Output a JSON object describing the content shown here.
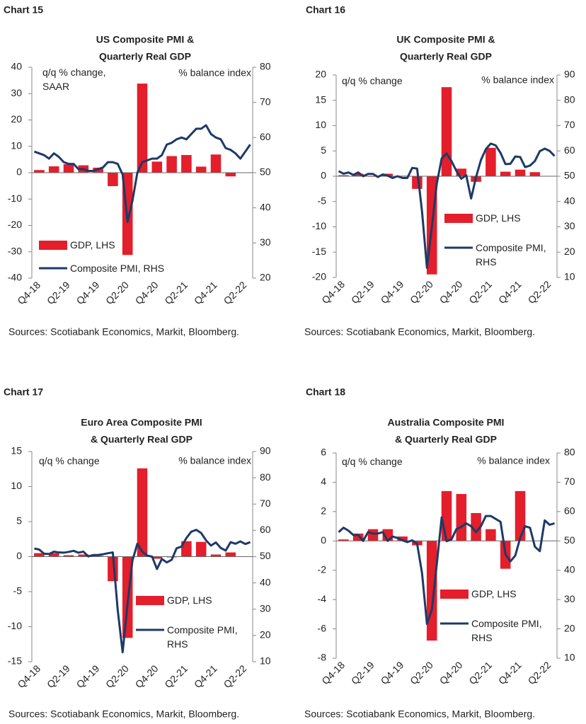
{
  "chart_data": [
    {
      "chart_label": "Chart 15",
      "type": "combo",
      "title": [
        "US Composite PMI &",
        "Quarterly Real GDP"
      ],
      "ylabel": "q/q % change, SAAR",
      "y2label": "% balance index",
      "categories": [
        null,
        "Q4-18",
        null,
        null,
        null,
        null,
        null,
        "Q2-19",
        null,
        null,
        null,
        null,
        null,
        "Q4-19",
        null,
        null,
        null,
        null,
        null,
        "Q2-20",
        null,
        null,
        null,
        null,
        null,
        "Q4-20",
        null,
        null,
        null,
        null,
        null,
        "Q2-21",
        null,
        null,
        null,
        null,
        null,
        "Q4-21",
        null,
        null,
        null,
        null,
        null,
        "Q2-22",
        null
      ],
      "series": [
        {
          "name": "GDP, LHS",
          "type": "bar",
          "color": "#e41e2b",
          "values": [
            null,
            1.0,
            null,
            null,
            2.4,
            null,
            null,
            3.2,
            null,
            null,
            2.8,
            null,
            null,
            1.9,
            null,
            null,
            -5.1,
            null,
            null,
            -31.2,
            null,
            null,
            33.8,
            null,
            null,
            4.2,
            null,
            null,
            6.3,
            null,
            null,
            6.7,
            null,
            null,
            2.3,
            null,
            null,
            6.9,
            null,
            null,
            -1.4,
            null,
            null,
            null,
            null
          ]
        },
        {
          "name": "Composite PMI, RHS",
          "type": "line",
          "axis": "y2",
          "color": "#1d3a66",
          "values": [
            56,
            55.5,
            55,
            54,
            55.5,
            54.5,
            53,
            52.5,
            52.5,
            51,
            51,
            50.5,
            50.5,
            51,
            51.5,
            53,
            53,
            52.5,
            49.5,
            36,
            42,
            50,
            53,
            53.5,
            54,
            54,
            55,
            58,
            58.5,
            59.5,
            60,
            59.5,
            61,
            62.5,
            62.5,
            63.5,
            61,
            60,
            59.5,
            57,
            56.5,
            55.5,
            54,
            56,
            58
          ]
        }
      ],
      "ylim": [
        -40,
        40
      ],
      "yticks": [
        -40,
        -30,
        -20,
        -10,
        0,
        10,
        20,
        30,
        40
      ],
      "y2lim": [
        20,
        80
      ],
      "y2ticks": [
        20,
        30,
        40,
        50,
        60,
        70,
        80
      ],
      "source": "Sources: Scotiabank Economics, Markit, Bloomberg."
    },
    {
      "chart_label": "Chart 16",
      "type": "combo",
      "title": [
        "UK Composite PMI &",
        "Quarterly Real GDP"
      ],
      "ylabel": "q/q % change",
      "y2label": "% balance index",
      "categories": [
        null,
        "Q4-18",
        null,
        null,
        null,
        null,
        null,
        "Q2-19",
        null,
        null,
        null,
        null,
        null,
        "Q4-19",
        null,
        null,
        null,
        null,
        null,
        "Q2-20",
        null,
        null,
        null,
        null,
        null,
        "Q4-20",
        null,
        null,
        null,
        null,
        null,
        "Q2-21",
        null,
        null,
        null,
        null,
        null,
        "Q4-21",
        null,
        null,
        null,
        null,
        null,
        "Q2-22",
        null
      ],
      "series": [
        {
          "name": "GDP, LHS",
          "type": "bar",
          "color": "#e41e2b",
          "values": [
            null,
            0.2,
            null,
            null,
            0.5,
            null,
            null,
            -0.1,
            null,
            null,
            0.5,
            null,
            null,
            0.1,
            null,
            null,
            -2.5,
            null,
            null,
            -19.4,
            null,
            null,
            17.6,
            null,
            null,
            1.5,
            null,
            null,
            -1.1,
            null,
            null,
            5.6,
            null,
            null,
            0.9,
            null,
            null,
            1.3,
            null,
            null,
            0.8,
            null,
            null,
            null,
            null
          ]
        },
        {
          "name": "Composite PMI, RHS",
          "type": "line",
          "axis": "y2",
          "color": "#1d3a66",
          "values": [
            52,
            51,
            51.5,
            50.5,
            51.5,
            50,
            50.9,
            50.9,
            49.7,
            50.7,
            50.2,
            49.3,
            50,
            49.3,
            49.3,
            53.3,
            53,
            36,
            13.8,
            30,
            47,
            57,
            59,
            56,
            52.1,
            49,
            50.4,
            41.2,
            49.6,
            56.4,
            60.7,
            62.9,
            62.2,
            59.2,
            54.8,
            54.9,
            57.8,
            57.6,
            53.6,
            54.2,
            56,
            59.9,
            60.9,
            60,
            58
          ]
        }
      ],
      "ylim": [
        -20,
        20
      ],
      "yticks": [
        -20,
        -15,
        -10,
        -5,
        0,
        5,
        10,
        15,
        20
      ],
      "y2lim": [
        10,
        90
      ],
      "y2ticks": [
        10,
        20,
        30,
        40,
        50,
        60,
        70,
        80,
        90
      ],
      "source": "Sources: Scotiabank Economics, Markit, Bloomberg."
    },
    {
      "chart_label": "Chart 17",
      "type": "combo",
      "title": [
        "Euro Area Composite PMI",
        "& Quarterly Real GDP"
      ],
      "ylabel": "q/q % change",
      "y2label": "% balance index",
      "categories": [
        null,
        "Q4-18",
        null,
        null,
        null,
        null,
        null,
        "Q2-19",
        null,
        null,
        null,
        null,
        null,
        "Q4-19",
        null,
        null,
        null,
        null,
        null,
        "Q2-20",
        null,
        null,
        null,
        null,
        null,
        "Q4-20",
        null,
        null,
        null,
        null,
        null,
        "Q2-21",
        null,
        null,
        null,
        null,
        null,
        "Q4-21",
        null,
        null,
        null,
        null,
        null,
        "Q2-22",
        null
      ],
      "series": [
        {
          "name": "GDP, LHS",
          "type": "bar",
          "color": "#e41e2b",
          "values": [
            null,
            0.5,
            null,
            null,
            0.5,
            null,
            null,
            0.2,
            null,
            null,
            0.3,
            null,
            null,
            0.1,
            null,
            null,
            -3.5,
            null,
            null,
            -11.6,
            null,
            null,
            12.6,
            null,
            null,
            -0.3,
            null,
            null,
            -0.1,
            null,
            null,
            2.2,
            null,
            null,
            2.1,
            null,
            null,
            0.3,
            null,
            null,
            0.6,
            null,
            null,
            null,
            null
          ]
        },
        {
          "name": "Composite PMI, RHS",
          "type": "line",
          "axis": "y2",
          "color": "#1d3a66",
          "values": [
            53.1,
            52.7,
            51.1,
            51,
            51.9,
            51.6,
            51.5,
            51.8,
            52.2,
            51.5,
            51.9,
            50.1,
            50.6,
            50.6,
            50.9,
            51.3,
            51.6,
            29.7,
            13.6,
            31.9,
            48.5,
            54.9,
            51.9,
            50.4,
            50,
            45.3,
            49.1,
            47.8,
            48.8,
            53.2,
            53.8,
            57.1,
            59.5,
            60.2,
            59,
            56.2,
            54.2,
            55.4,
            53.3,
            52.3,
            55.5,
            54.9,
            55.8,
            54.8,
            55.5
          ]
        }
      ],
      "ylim": [
        -15,
        15
      ],
      "yticks": [
        -15,
        -10,
        -5,
        0,
        5,
        10,
        15
      ],
      "y2lim": [
        10,
        90
      ],
      "y2ticks": [
        10,
        20,
        30,
        40,
        50,
        60,
        70,
        80,
        90
      ],
      "source": "Sources: Scotiabank Economics, Markit, Bloomberg."
    },
    {
      "chart_label": "Chart 18",
      "type": "combo",
      "title": [
        "Australia Composite PMI",
        "& Quarterly Real GDP"
      ],
      "ylabel": "q/q % change",
      "y2label": "% balance index",
      "categories": [
        null,
        "Q4-18",
        null,
        null,
        null,
        null,
        null,
        "Q2-19",
        null,
        null,
        null,
        null,
        null,
        "Q4-19",
        null,
        null,
        null,
        null,
        null,
        "Q2-20",
        null,
        null,
        null,
        null,
        null,
        "Q4-20",
        null,
        null,
        null,
        null,
        null,
        "Q2-21",
        null,
        null,
        null,
        null,
        null,
        "Q4-21",
        null,
        null,
        null,
        null,
        null,
        "Q2-22",
        null
      ],
      "series": [
        {
          "name": "GDP, LHS",
          "type": "bar",
          "color": "#e41e2b",
          "values": [
            null,
            0.1,
            null,
            null,
            0.5,
            null,
            null,
            0.8,
            null,
            null,
            0.8,
            null,
            null,
            0.3,
            null,
            null,
            -0.3,
            null,
            null,
            -6.8,
            null,
            null,
            3.4,
            null,
            null,
            3.2,
            null,
            null,
            1.9,
            null,
            null,
            0.8,
            null,
            null,
            -1.9,
            null,
            null,
            3.4,
            null,
            null,
            null,
            null,
            null,
            null,
            null
          ]
        },
        {
          "name": "Composite PMI, RHS",
          "type": "line",
          "axis": "y2",
          "color": "#1d3a66",
          "values": [
            53,
            54.5,
            53.5,
            52,
            52,
            50,
            53,
            52.5,
            52.5,
            53,
            50,
            51.5,
            51,
            50.2,
            49.6,
            50.2,
            49,
            39,
            21.7,
            26.5,
            42,
            58,
            49.9,
            50.5,
            54,
            54.8,
            56,
            55,
            53,
            55,
            58.5,
            58.5,
            57.5,
            56.5,
            45.5,
            43,
            45,
            51,
            55,
            54.5,
            48,
            46.5,
            57,
            55.5,
            56
          ]
        }
      ],
      "ylim": [
        -8,
        6
      ],
      "yticks": [
        -8,
        -6,
        -4,
        -2,
        0,
        2,
        4,
        6
      ],
      "y2lim": [
        10,
        80
      ],
      "y2ticks": [
        10,
        20,
        30,
        40,
        50,
        60,
        70,
        80
      ],
      "source": "Sources: Scotiabank Economics, Markit, Bloomberg."
    }
  ]
}
